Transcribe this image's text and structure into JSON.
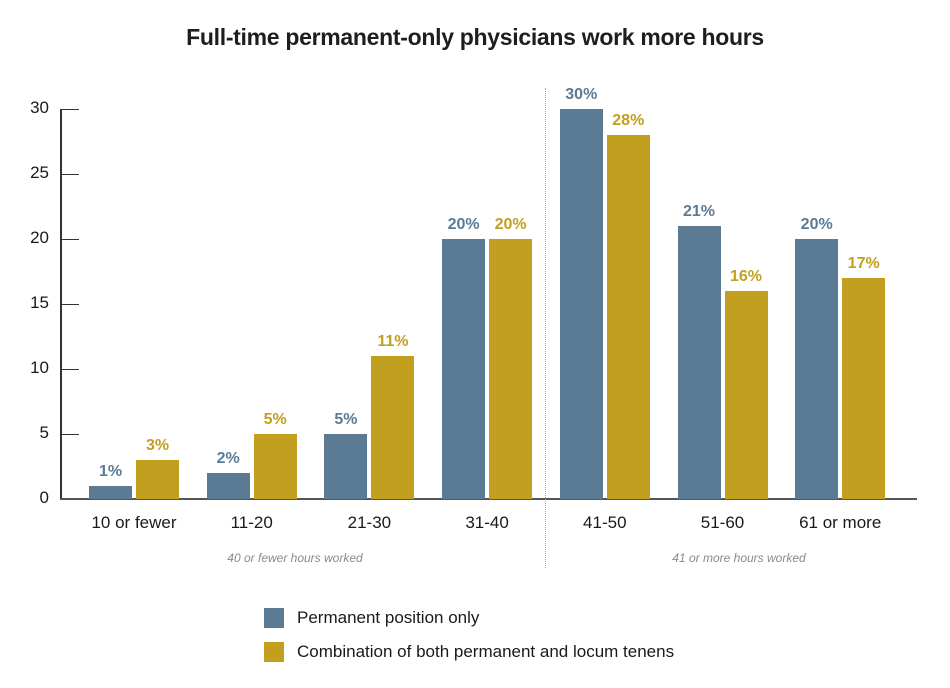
{
  "title": "Full-time permanent-only physicians work more hours",
  "colors": {
    "permanent": "#5b7b95",
    "combination": "#c29f1f",
    "axis": "#333333",
    "note": "#8a8a8a"
  },
  "y_ticks": [
    "0",
    "5",
    "10",
    "15",
    "20",
    "25",
    "30"
  ],
  "categories": [
    "10 or fewer",
    "11-20",
    "21-30",
    "31-40",
    "41-50",
    "51-60",
    "61 or more"
  ],
  "group_notes": {
    "left": "40 or fewer hours worked",
    "right": "41 or more hours worked"
  },
  "legend": [
    {
      "label": "Permanent position only",
      "color": "#5b7b95"
    },
    {
      "label": "Combination of both permanent and locum tenens",
      "color": "#c29f1f"
    }
  ],
  "value_labels": {
    "permanent": [
      "1%",
      "2%",
      "5%",
      "20%",
      "30%",
      "21%",
      "20%"
    ],
    "combination": [
      "3%",
      "5%",
      "11%",
      "20%",
      "28%",
      "16%",
      "17%"
    ]
  },
  "chart_data": {
    "type": "bar",
    "title": "Full-time permanent-only physicians work more hours",
    "xlabel": "",
    "ylabel": "",
    "categories": [
      "10 or fewer",
      "11-20",
      "21-30",
      "31-40",
      "41-50",
      "51-60",
      "61 or more"
    ],
    "series": [
      {
        "name": "Permanent position only",
        "values": [
          1,
          2,
          5,
          20,
          30,
          21,
          20
        ],
        "color": "#5b7b95"
      },
      {
        "name": "Combination of both permanent and locum tenens",
        "values": [
          3,
          5,
          11,
          20,
          28,
          16,
          17
        ],
        "color": "#c29f1f"
      }
    ],
    "ylim": [
      0,
      30
    ],
    "yticks": [
      0,
      5,
      10,
      15,
      20,
      25,
      30
    ],
    "grid": false,
    "legend_position": "bottom",
    "annotations": [
      {
        "text": "40 or fewer hours worked",
        "span": [
          "10 or fewer",
          "31-40"
        ]
      },
      {
        "text": "41 or more hours worked",
        "span": [
          "41-50",
          "61 or more"
        ]
      }
    ],
    "value_suffix": "%"
  }
}
